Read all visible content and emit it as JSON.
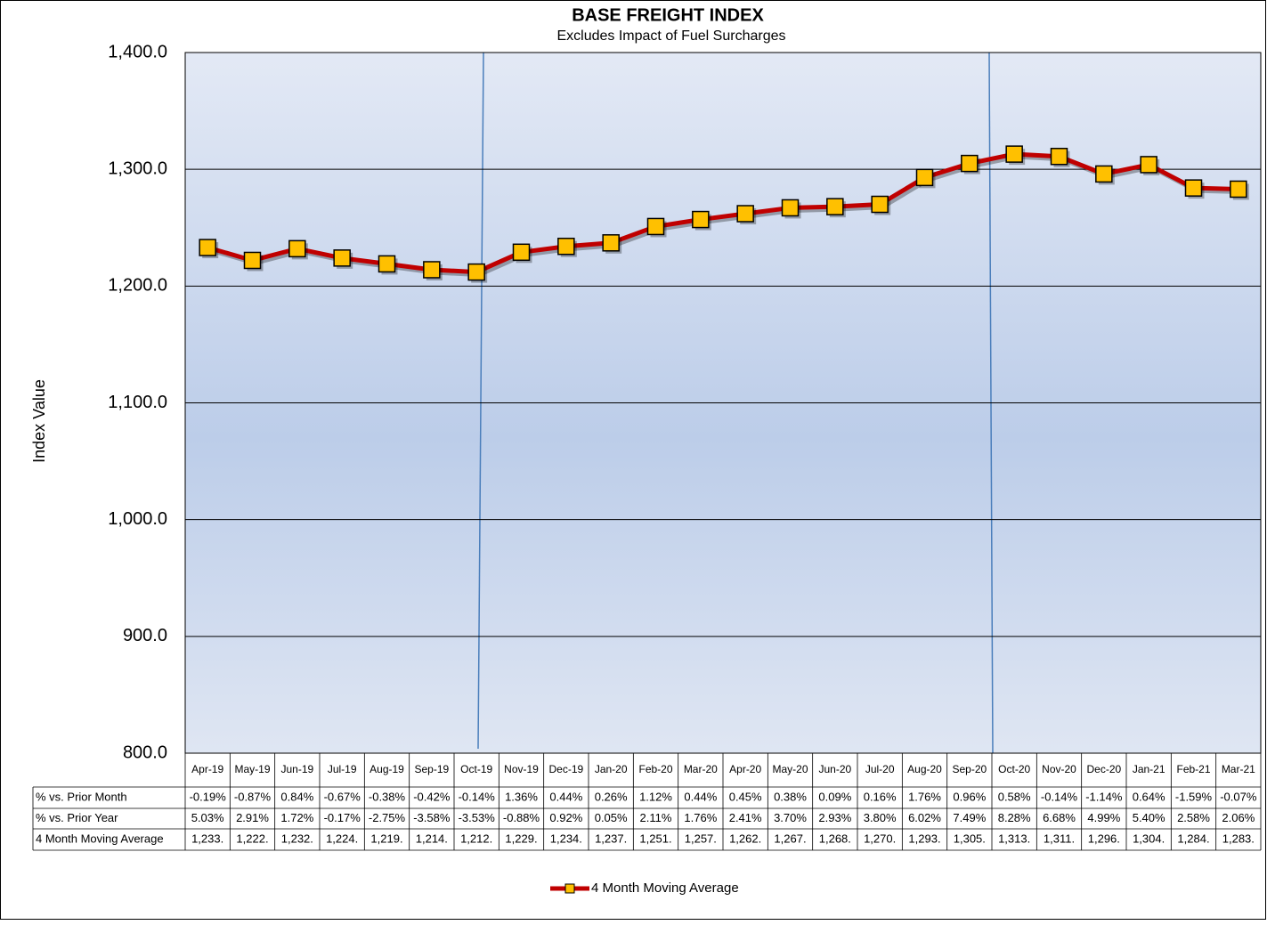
{
  "chart_data": {
    "type": "line",
    "title": "BASE FREIGHT INDEX",
    "subtitle": "Excludes Impact of Fuel Surcharges",
    "y_label": "Index Value",
    "categories": [
      "Apr-19",
      "May-19",
      "Jun-19",
      "Jul-19",
      "Aug-19",
      "Sep-19",
      "Oct-19",
      "Nov-19",
      "Dec-19",
      "Jan-20",
      "Feb-20",
      "Mar-20",
      "Apr-20",
      "May-20",
      "Jun-20",
      "Jul-20",
      "Aug-20",
      "Sep-20",
      "Oct-20",
      "Nov-20",
      "Dec-20",
      "Jan-21",
      "Feb-21",
      "Mar-21"
    ],
    "series": [
      {
        "name": "4 Month Moving Average",
        "color": "#c00000",
        "marker_color": "#ffc000",
        "values": [
          1233,
          1222,
          1232,
          1224,
          1219,
          1214,
          1212,
          1229,
          1234,
          1237,
          1251,
          1257,
          1262,
          1267,
          1268,
          1270,
          1293,
          1305,
          1313,
          1311,
          1296,
          1304,
          1284,
          1283
        ],
        "value_labels": [
          "1,233.",
          "1,222.",
          "1,232.",
          "1,224.",
          "1,219.",
          "1,214.",
          "1,212.",
          "1,229.",
          "1,234.",
          "1,237.",
          "1,251.",
          "1,257.",
          "1,262.",
          "1,267.",
          "1,268.",
          "1,270.",
          "1,293.",
          "1,305.",
          "1,313.",
          "1,311.",
          "1,296.",
          "1,304.",
          "1,284.",
          "1,283."
        ]
      }
    ],
    "data_table": [
      {
        "name": "% vs. Prior Month",
        "values": [
          -0.19,
          -0.87,
          0.84,
          -0.67,
          -0.38,
          -0.42,
          -0.14,
          1.36,
          0.44,
          0.26,
          1.12,
          0.44,
          0.45,
          0.38,
          0.09,
          0.16,
          1.76,
          0.96,
          0.58,
          -0.14,
          -1.14,
          0.64,
          -1.59,
          -0.07
        ],
        "value_labels": [
          "-0.19%",
          "-0.87%",
          "0.84%",
          "-0.67%",
          "-0.38%",
          "-0.42%",
          "-0.14%",
          "1.36%",
          "0.44%",
          "0.26%",
          "1.12%",
          "0.44%",
          "0.45%",
          "0.38%",
          "0.09%",
          "0.16%",
          "1.76%",
          "0.96%",
          "0.58%",
          "-0.14%",
          "-1.14%",
          "0.64%",
          "-1.59%",
          "-0.07%"
        ]
      },
      {
        "name": "% vs. Prior Year",
        "values": [
          5.03,
          2.91,
          1.72,
          -0.17,
          -2.75,
          -3.58,
          -3.53,
          -0.88,
          0.92,
          0.05,
          2.11,
          1.76,
          2.41,
          3.7,
          2.93,
          3.8,
          6.02,
          7.49,
          8.28,
          6.68,
          4.99,
          5.4,
          2.58,
          2.06
        ],
        "value_labels": [
          "5.03%",
          "2.91%",
          "1.72%",
          "-0.17%",
          "-2.75%",
          "-3.58%",
          "-3.53%",
          "-0.88%",
          "0.92%",
          "0.05%",
          "2.11%",
          "1.76%",
          "2.41%",
          "3.70%",
          "2.93%",
          "3.80%",
          "6.02%",
          "7.49%",
          "8.28%",
          "6.68%",
          "4.99%",
          "5.40%",
          "2.58%",
          "2.06%"
        ]
      }
    ],
    "ylim": [
      800,
      1400
    ],
    "yticks": [
      {
        "value": 800,
        "label": "800.0"
      },
      {
        "value": 900,
        "label": "900.0"
      },
      {
        "value": 1000,
        "label": "1,000.0"
      },
      {
        "value": 1100,
        "label": "1,100.0"
      },
      {
        "value": 1200,
        "label": "1,200.0"
      },
      {
        "value": 1300,
        "label": "1,300.0"
      },
      {
        "value": 1400,
        "label": "1,400.0"
      }
    ],
    "grid": true,
    "legend": "bottom"
  }
}
